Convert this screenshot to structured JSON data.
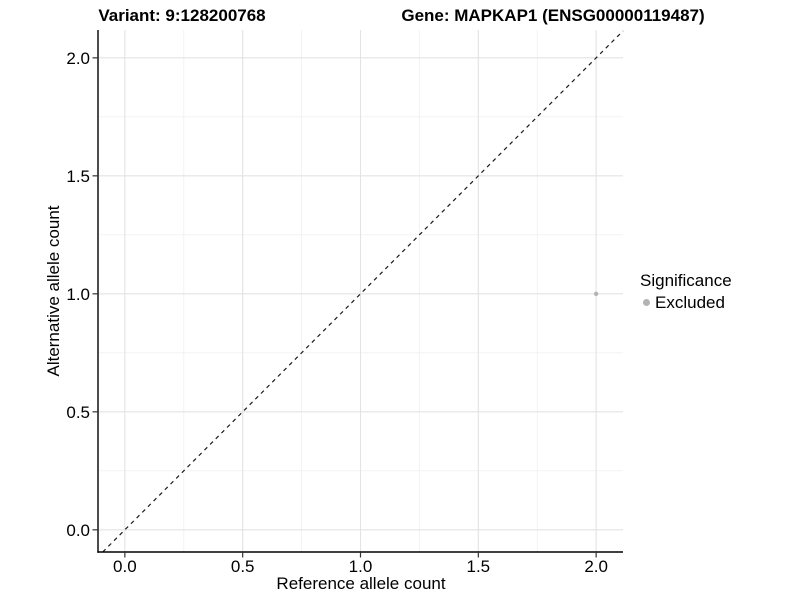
{
  "chart_data": {
    "type": "scatter",
    "title_left": "Variant: 9:128200768",
    "title_right": "Gene: MAPKAP1 (ENSG00000119487)",
    "xlabel": "Reference allele count",
    "ylabel": "Alternative allele count",
    "xlim": [
      -0.114,
      2.114
    ],
    "ylim": [
      -0.094,
      2.118
    ],
    "x_ticks": [
      "0.0",
      "0.5",
      "1.0",
      "1.5",
      "2.0"
    ],
    "y_ticks": [
      "0.0",
      "0.5",
      "1.0",
      "1.5",
      "2.0"
    ],
    "grid": {
      "major": [
        0.0,
        0.5,
        1.0,
        1.5,
        2.0
      ],
      "minor": [
        0.25,
        0.75,
        1.25,
        1.75
      ],
      "major_color": "#e3e3e3",
      "minor_color": "#f1f1f1"
    },
    "reference_line": {
      "equation": "y = x",
      "style": "dashed",
      "color": "#1a1a1a"
    },
    "series": [
      {
        "name": "Excluded",
        "color": "#b3b3b3",
        "points": [
          {
            "x": 2.0,
            "y": 1.0
          }
        ]
      }
    ],
    "legend": {
      "title": "Significance",
      "position": "right",
      "entries": [
        {
          "label": "Excluded",
          "color": "#b3b3b3"
        }
      ]
    },
    "axis_color": "#000000",
    "tick_color": "#333333",
    "text_color": "#000000"
  }
}
